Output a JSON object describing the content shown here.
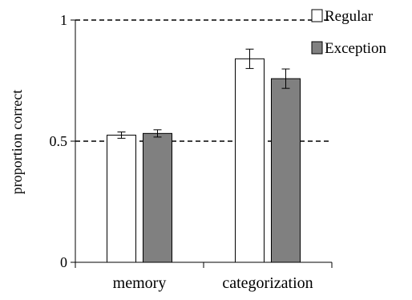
{
  "chart_data": {
    "type": "bar",
    "title": "",
    "xlabel": "",
    "ylabel": "proportion correct",
    "ylim": [
      0,
      1
    ],
    "yticks": [
      {
        "value": 0,
        "label": "0"
      },
      {
        "value": 0.5,
        "label": "0.5"
      },
      {
        "value": 1,
        "label": "1"
      }
    ],
    "reference_lines": [
      0.5,
      1
    ],
    "categories": [
      "memory",
      "categorization"
    ],
    "series": [
      {
        "name": "Regular",
        "color": "#ffffff",
        "values": [
          0.525,
          0.84
        ],
        "errors": [
          0.013,
          0.04
        ]
      },
      {
        "name": "Exception",
        "color": "#808080",
        "values": [
          0.532,
          0.758
        ],
        "errors": [
          0.015,
          0.04
        ]
      }
    ],
    "legend": {
      "position": "top-right"
    },
    "grid": false
  }
}
